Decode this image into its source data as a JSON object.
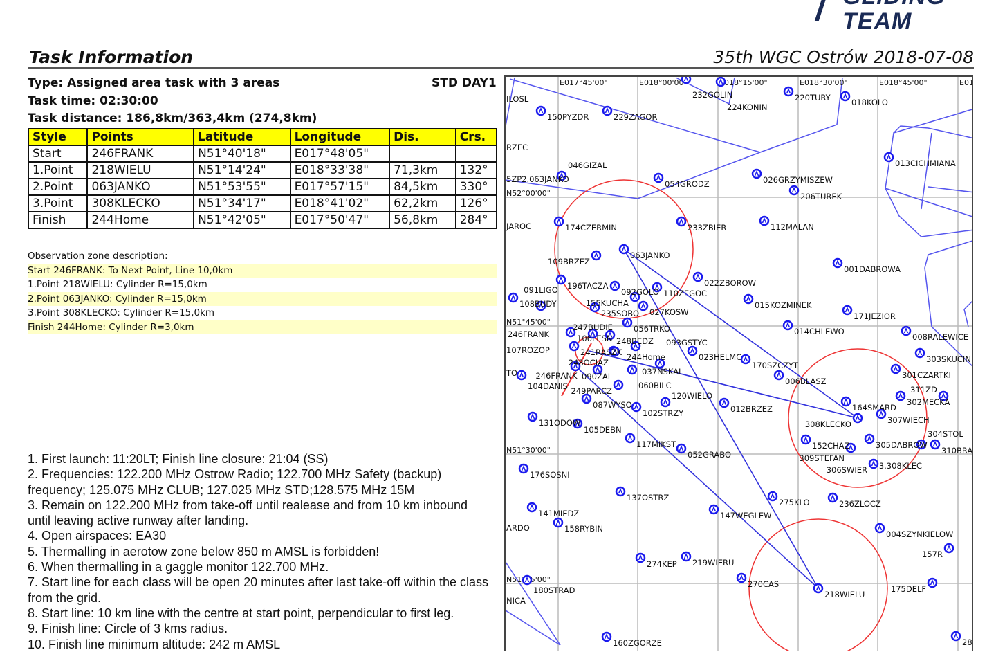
{
  "logo": {
    "line1": "GLIDING",
    "line2": "TEAM"
  },
  "header": {
    "title": "Task Information",
    "event": "35th WGC Ostrów 2018-07-08"
  },
  "task": {
    "type": "Type: Assigned area task with 3 areas",
    "class_day": "STD DAY1",
    "time": "Task time: 02:30:00",
    "distance": "Task distance: 186,8km/363,4km (274,8km)"
  },
  "table": {
    "headers": [
      "Style",
      "Points",
      "Latitude",
      "Longitude",
      "Dis.",
      "Crs."
    ],
    "rows": [
      [
        "Start",
        "246FRANK",
        "N51°40'18\"",
        "E017°48'05\"",
        "",
        ""
      ],
      [
        "1.Point",
        "218WIELU",
        "N51°14'24\"",
        "E018°33'38\"",
        "71,3km",
        "132°"
      ],
      [
        "2.Point",
        "063JANKO",
        "N51°53'55\"",
        "E017°57'15\"",
        "84,5km",
        "330°"
      ],
      [
        "3.Point",
        "308KLECKO",
        "N51°34'17\"",
        "E018°41'02\"",
        "62,2km",
        "126°"
      ],
      [
        "Finish",
        "244Home",
        "N51°42'05\"",
        "E017°50'47\"",
        "56,8km",
        "284°"
      ]
    ]
  },
  "observation_zones": {
    "heading": "Observation zone description:",
    "lines": [
      "Start 246FRANK: To Next Point, Line 10,0km",
      "1.Point 218WIELU: Cylinder R=15,0km",
      "2.Point 063JANKO: Cylinder R=15,0km",
      "3.Point 308KLECKO: Cylinder R=15,0km",
      "Finish 244Home: Cylinder R=3,0km"
    ]
  },
  "notes": [
    "1. First launch: 11:20LT; Finish line closure: 21:04 (SS)",
    "2. Frequencies: 122.200 MHz Ostrow Radio; 122.700 MHz Safety (backup) frequency; 125.075 MHz CLUB; 127.025 MHz STD;128.575 MHz 15M",
    "3. Remain on 122.200 MHz from take-off until realease and from 10 km inbound until leaving active runway after landing.",
    "4. Open airspaces: EA30",
    "5. Thermalling in aerotow zone below 850 m AMSL is forbidden!",
    "6. When thermalling in a gaggle monitor 122.700 MHz.",
    "7. Start line for each class will be open 20 minutes after last take-off within the class from the grid.",
    "8. Start line: 10 km line with the centre at start point, perpendicular to first leg.",
    "9. Finish line: Circle of 3 kms radius.",
    "10. Finish line minimum altitude: 242 m AMSL"
  ],
  "map": {
    "colors": {
      "task": "#3333dd",
      "airspace": "#5555ee",
      "zone": "#ee3333",
      "waypoint": "#1a1aee",
      "grid": "#bbbbbb"
    },
    "lon_labels": [
      "E017°45'00\"",
      "E018°00'00\"",
      "E018°15'00\"",
      "E018°30'00\"",
      "E018°45'00\"",
      "E01"
    ],
    "lat_labels": [
      "N52°00'00\"",
      "N51°45'00\"",
      "N51°30'00\"",
      "N51°15'00\""
    ],
    "edge_labels": [
      "ILOSL",
      "RZEC",
      "JAROC",
      "107ROZOP",
      "TO",
      "ARDO",
      "NICA",
      "5ZP2.063JANKO",
      "3.308KLEC",
      "246FRANK"
    ],
    "waypoints": [
      "150PYZDR",
      "229ZAGOR",
      "232GOLIN",
      "224KONIN",
      "220TURY",
      "018KOLO",
      "013CICHMIANA",
      "046GIZAL",
      "054GRODZ",
      "026GRZYMISZEW",
      "206TUREK",
      "174CZERMIN",
      "233ZBIER",
      "112MALAN",
      "063JANKO",
      "109BRZEZ",
      "001DABROWA",
      "196TACZA",
      "092GOLO",
      "110ZEGOC",
      "022ZBOROW",
      "015KOZMINEK",
      "108BUDY",
      "091LIGO",
      "235SOBO",
      "155KUCHA",
      "027KOSW",
      "171JEZIOR",
      "056TRKO",
      "014CHLEWO",
      "008RALEWICE",
      "106LESN",
      "247BUDIE",
      "248BEDZ",
      "241RASZK",
      "244Home",
      "248OCIAZ",
      "037NSKAL",
      "023HELMC",
      "303SKUCIN",
      "170SZCZYT",
      "301CZARTKI",
      "090ZAL",
      "246FRANK",
      "060BILC",
      "093GSTYC",
      "006BLASZ",
      "104DANIS",
      "249PARCZ",
      "087WYSO",
      "102STRZY",
      "120WIELO",
      "012BRZEZ",
      "131ODOW",
      "105DEBN",
      "164SMARD",
      "302MECKA",
      "311ZD",
      "307WIECH",
      "308KLECKO",
      "152CHAZ",
      "305DABROW",
      "309STEFAN",
      "304STOL",
      "310BRA",
      "306SWIER",
      "117MIKST",
      "052GRABO",
      "176SOSNI",
      "137OSTRZ",
      "275KLO",
      "236ZLOCZ",
      "141MIEDZ",
      "147WEGLEW",
      "158RYBIN",
      "004SZYNKIELOW",
      "157R",
      "274KEP",
      "219WIERU",
      "270CAS",
      "218WIELU",
      "180STRAD",
      "175DELF",
      "160ZGORZE",
      "28"
    ]
  }
}
